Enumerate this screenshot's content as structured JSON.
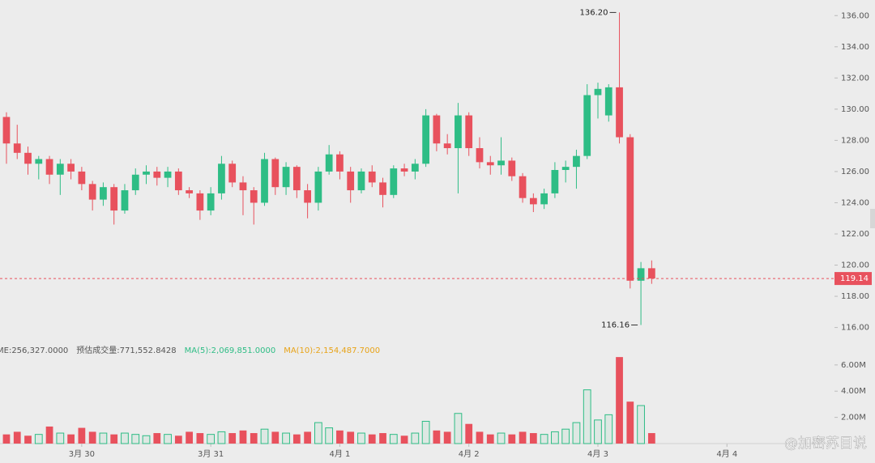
{
  "chart_data": {
    "type": "candlestick",
    "up_color": "#2ebd85",
    "down_color": "#e8515d",
    "xlim": [
      -0.6,
      77
    ],
    "xticks": [
      {
        "value": 7,
        "label": "3月 30"
      },
      {
        "value": 19,
        "label": "3月 31"
      },
      {
        "value": 31,
        "label": "4月 1"
      },
      {
        "value": 43,
        "label": "4月 2"
      },
      {
        "value": 55,
        "label": "4月 3"
      },
      {
        "value": 67,
        "label": "4月 4"
      }
    ],
    "ylim": [
      115.2,
      137
    ],
    "yticks": [
      {
        "value": 116,
        "label": "116.00"
      },
      {
        "value": 118,
        "label": "118.00"
      },
      {
        "value": 120,
        "label": "120.00"
      },
      {
        "value": 122,
        "label": "122.00"
      },
      {
        "value": 124,
        "label": "124.00"
      },
      {
        "value": 126,
        "label": "126.00"
      },
      {
        "value": 128,
        "label": "128.00"
      },
      {
        "value": 130,
        "label": "130.00"
      },
      {
        "value": 132,
        "label": "132.00"
      },
      {
        "value": 134,
        "label": "134.00"
      },
      {
        "value": 136,
        "label": "136.00"
      }
    ],
    "last_price": {
      "value": 119.14,
      "label": "119.14"
    },
    "extremes": [
      {
        "value": 136.2,
        "label": "136.20"
      },
      {
        "value": 116.16,
        "label": "116.16"
      }
    ],
    "candles": [
      {
        "o": 129.5,
        "h": 129.8,
        "l": 126.5,
        "c": 127.8
      },
      {
        "o": 127.8,
        "h": 129,
        "l": 126.8,
        "c": 127.2
      },
      {
        "o": 127.2,
        "h": 127.6,
        "l": 125.8,
        "c": 126.5
      },
      {
        "o": 126.5,
        "h": 127,
        "l": 125.5,
        "c": 126.8
      },
      {
        "o": 126.8,
        "h": 127,
        "l": 125.2,
        "c": 125.8
      },
      {
        "o": 125.8,
        "h": 126.8,
        "l": 124.5,
        "c": 126.5
      },
      {
        "o": 126.5,
        "h": 126.8,
        "l": 125.5,
        "c": 126
      },
      {
        "o": 126,
        "h": 126.3,
        "l": 124.8,
        "c": 125.2
      },
      {
        "o": 125.2,
        "h": 125.4,
        "l": 123.5,
        "c": 124.2
      },
      {
        "o": 124.2,
        "h": 125.3,
        "l": 123.8,
        "c": 125
      },
      {
        "o": 125,
        "h": 125.2,
        "l": 122.6,
        "c": 123.5
      },
      {
        "o": 123.5,
        "h": 125.2,
        "l": 123.3,
        "c": 124.8
      },
      {
        "o": 124.8,
        "h": 126.2,
        "l": 124.5,
        "c": 125.8
      },
      {
        "o": 125.8,
        "h": 126.4,
        "l": 125.2,
        "c": 126
      },
      {
        "o": 126,
        "h": 126.3,
        "l": 125.1,
        "c": 125.6
      },
      {
        "o": 125.6,
        "h": 126.3,
        "l": 125,
        "c": 126
      },
      {
        "o": 126,
        "h": 126.2,
        "l": 124.5,
        "c": 124.8
      },
      {
        "o": 124.8,
        "h": 125,
        "l": 124.3,
        "c": 124.6
      },
      {
        "o": 124.6,
        "h": 124.8,
        "l": 122.9,
        "c": 123.5
      },
      {
        "o": 123.5,
        "h": 125,
        "l": 123.2,
        "c": 124.6
      },
      {
        "o": 124.6,
        "h": 127,
        "l": 124.2,
        "c": 126.5
      },
      {
        "o": 126.5,
        "h": 126.7,
        "l": 125,
        "c": 125.3
      },
      {
        "o": 125.3,
        "h": 125.7,
        "l": 123.2,
        "c": 124.8
      },
      {
        "o": 124.8,
        "h": 125,
        "l": 122.6,
        "c": 124
      },
      {
        "o": 124,
        "h": 127.2,
        "l": 123.8,
        "c": 126.8
      },
      {
        "o": 126.8,
        "h": 126.9,
        "l": 124.5,
        "c": 125
      },
      {
        "o": 125,
        "h": 126.6,
        "l": 124.5,
        "c": 126.3
      },
      {
        "o": 126.3,
        "h": 126.4,
        "l": 124.3,
        "c": 124.8
      },
      {
        "o": 124.8,
        "h": 125.2,
        "l": 123,
        "c": 124
      },
      {
        "o": 124,
        "h": 126.3,
        "l": 123.5,
        "c": 126
      },
      {
        "o": 126,
        "h": 127.7,
        "l": 125.8,
        "c": 127.1
      },
      {
        "o": 127.1,
        "h": 127.3,
        "l": 125.5,
        "c": 126
      },
      {
        "o": 126,
        "h": 126.3,
        "l": 124,
        "c": 124.8
      },
      {
        "o": 124.8,
        "h": 126.2,
        "l": 124.6,
        "c": 126
      },
      {
        "o": 126,
        "h": 126.4,
        "l": 125,
        "c": 125.3
      },
      {
        "o": 125.3,
        "h": 125.6,
        "l": 123.7,
        "c": 124.5
      },
      {
        "o": 124.5,
        "h": 126.4,
        "l": 124.3,
        "c": 126.2
      },
      {
        "o": 126.2,
        "h": 126.5,
        "l": 125.7,
        "c": 126
      },
      {
        "o": 126,
        "h": 126.8,
        "l": 125.5,
        "c": 126.5
      },
      {
        "o": 126.5,
        "h": 130,
        "l": 126.3,
        "c": 129.6
      },
      {
        "o": 129.6,
        "h": 129.7,
        "l": 127.3,
        "c": 127.8
      },
      {
        "o": 127.8,
        "h": 128.4,
        "l": 127.1,
        "c": 127.5
      },
      {
        "o": 127.5,
        "h": 130.4,
        "l": 124.6,
        "c": 129.6
      },
      {
        "o": 129.6,
        "h": 129.8,
        "l": 127,
        "c": 127.5
      },
      {
        "o": 127.5,
        "h": 128.2,
        "l": 126.2,
        "c": 126.6
      },
      {
        "o": 126.6,
        "h": 127,
        "l": 125.8,
        "c": 126.4
      },
      {
        "o": 126.4,
        "h": 128.2,
        "l": 125.8,
        "c": 126.7
      },
      {
        "o": 126.7,
        "h": 126.9,
        "l": 125.4,
        "c": 125.7
      },
      {
        "o": 125.7,
        "h": 125.9,
        "l": 124,
        "c": 124.3
      },
      {
        "o": 124.3,
        "h": 124.6,
        "l": 123.4,
        "c": 123.9
      },
      {
        "o": 123.9,
        "h": 124.9,
        "l": 123.6,
        "c": 124.6
      },
      {
        "o": 124.6,
        "h": 126.6,
        "l": 124.3,
        "c": 126.1
      },
      {
        "o": 126.1,
        "h": 126.7,
        "l": 125.3,
        "c": 126.3
      },
      {
        "o": 126.3,
        "h": 127.4,
        "l": 124.9,
        "c": 127
      },
      {
        "o": 127,
        "h": 131.6,
        "l": 126.8,
        "c": 130.9
      },
      {
        "o": 130.9,
        "h": 131.7,
        "l": 129.4,
        "c": 131.3
      },
      {
        "o": 129.6,
        "h": 131.6,
        "l": 129.2,
        "c": 131.4
      },
      {
        "o": 131.4,
        "h": 136.2,
        "l": 127.8,
        "c": 128.2
      },
      {
        "o": 128.2,
        "h": 128.4,
        "l": 118.5,
        "c": 119
      },
      {
        "o": 119,
        "h": 120.2,
        "l": 116.16,
        "c": 119.8
      },
      {
        "o": 119.8,
        "h": 120.3,
        "l": 118.8,
        "c": 119.14
      }
    ],
    "volume": [
      700000,
      900000,
      600000,
      700000,
      1300000,
      800000,
      700000,
      1200000,
      900000,
      800000,
      700000,
      800000,
      700000,
      600000,
      800000,
      700000,
      600000,
      900000,
      800000,
      700000,
      900000,
      800000,
      1000000,
      800000,
      1100000,
      900000,
      800000,
      700000,
      900000,
      1600000,
      1200000,
      1000000,
      900000,
      800000,
      700000,
      800000,
      700000,
      600000,
      800000,
      1700000,
      1000000,
      900000,
      2300000,
      1500000,
      900000,
      700000,
      800000,
      700000,
      900000,
      800000,
      700000,
      900000,
      1100000,
      1600000,
      4100000,
      1800000,
      2200000,
      6600000,
      3200000,
      2900000,
      800000
    ],
    "volume_ylim": [
      0,
      6670000
    ],
    "volume_yticks": [
      {
        "value": 2000000,
        "label": "2.00M"
      },
      {
        "value": 4000000,
        "label": "4.00M"
      },
      {
        "value": 6000000,
        "label": "6.00M"
      }
    ],
    "volume_legend": [
      {
        "text": "ME:256,327.0000",
        "color": "#555555"
      },
      {
        "text": "预估成交量:771,552.8428",
        "color": "#555555"
      },
      {
        "text": "MA(5):2,069,851.0000",
        "color": "#2ebd85"
      },
      {
        "text": "MA(10):2,154,487.7000",
        "color": "#e8a317"
      }
    ],
    "watermark": "@加密苏目说"
  }
}
